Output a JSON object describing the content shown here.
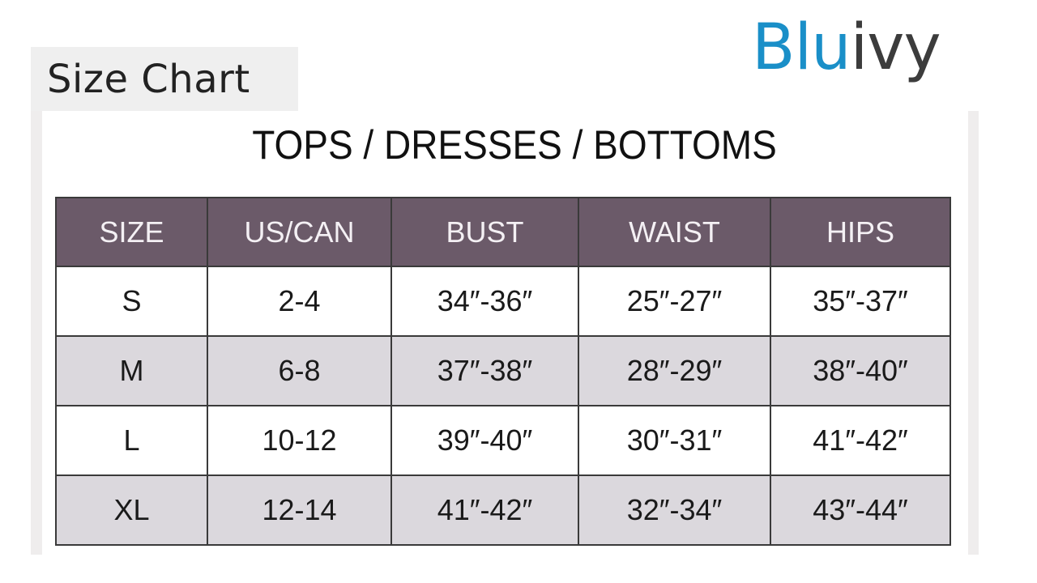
{
  "header": {
    "title": "Size Chart",
    "logo_part1": "Blu",
    "logo_part2": "ivy"
  },
  "chart": {
    "title": "TOPS / DRESSES / BOTTOMS",
    "columns": [
      "SIZE",
      "US/CAN",
      "BUST",
      "WAIST",
      "HIPS"
    ],
    "rows": [
      [
        "S",
        "2-4",
        "34″-36″",
        "25″-27″",
        "35″-37″"
      ],
      [
        "M",
        "6-8",
        "37″-38″",
        "28″-29″",
        "38″-40″"
      ],
      [
        "L",
        "10-12",
        "39″-40″",
        "30″-31″",
        "41″-42″"
      ],
      [
        "XL",
        "12-14",
        "41″-42″",
        "32″-34″",
        "43″-44″"
      ]
    ],
    "colors": {
      "header_bg": "#6b5a69",
      "alt_row_bg": "#dbd8dd",
      "logo_blue": "#1a8fc8"
    }
  }
}
